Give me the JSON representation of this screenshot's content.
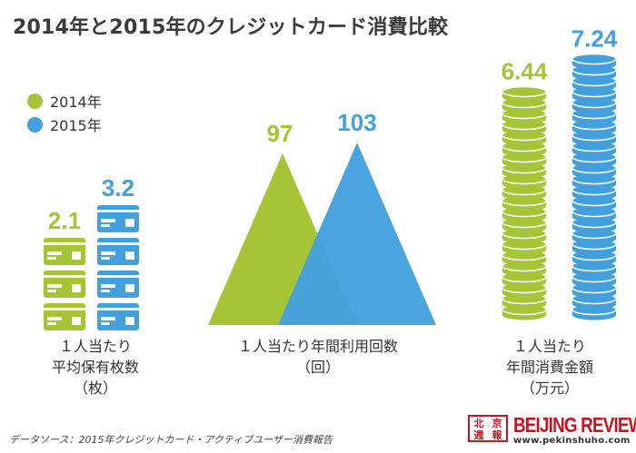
{
  "title": "2014年と2015年のクレジットカード消費比較",
  "colors": {
    "y2014": "#a6c536",
    "y2015": "#43a0de"
  },
  "legend": [
    {
      "label": "2014年",
      "color": "#a6c536"
    },
    {
      "label": "2015年",
      "color": "#43a0de"
    }
  ],
  "chart_data": [
    {
      "type": "pictograph",
      "pictogram": "card-icon",
      "series": [
        {
          "name": "2014年",
          "value": 2.1,
          "value_label": "2.1"
        },
        {
          "name": "2015年",
          "value": 3.2,
          "value_label": "3.2"
        }
      ],
      "label_lines": [
        "１人当たり",
        "平均保有枚数",
        "（枚）"
      ]
    },
    {
      "type": "area",
      "shape": "triangle",
      "series": [
        {
          "name": "2014年",
          "value": 97,
          "value_label": "97"
        },
        {
          "name": "2015年",
          "value": 103,
          "value_label": "103"
        }
      ],
      "label_lines": [
        "１人当たり年間利用回数",
        "（回）"
      ]
    },
    {
      "type": "bar",
      "pictogram": "coin-stack-icon",
      "series": [
        {
          "name": "2014年",
          "value": 6.44,
          "value_label": "6.44"
        },
        {
          "name": "2015年",
          "value": 7.24,
          "value_label": "7.24"
        }
      ],
      "label_lines": [
        "１人当たり",
        "年間消費金額",
        "（万元）"
      ]
    }
  ],
  "footer": {
    "source": "データソース：2015年クレジットカード・アクティブユーザー消費報告",
    "logo_seal": [
      "北",
      "京",
      "週",
      "報"
    ],
    "logo_name": "BEIJING REVIEW",
    "logo_url": "www.pekinshuho.com"
  }
}
